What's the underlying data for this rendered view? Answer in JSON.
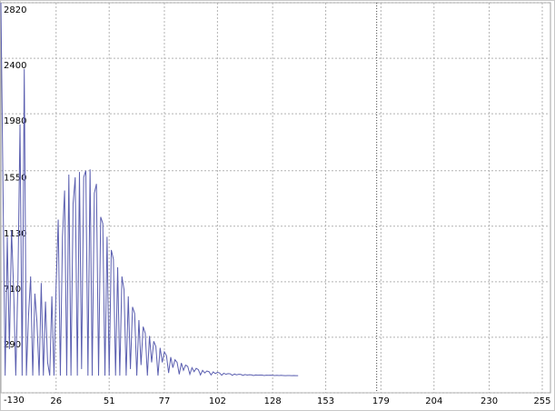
{
  "chart_data": {
    "type": "line",
    "x": [
      0,
      1,
      2,
      3,
      4,
      5,
      6,
      7,
      8,
      9,
      10,
      11,
      12,
      13,
      14,
      15,
      16,
      17,
      18,
      19,
      20,
      21,
      22,
      23,
      24,
      25,
      26,
      27,
      28,
      29,
      30,
      31,
      32,
      33,
      34,
      35,
      36,
      37,
      38,
      39,
      40,
      41,
      42,
      43,
      44,
      45,
      46,
      47,
      48,
      49,
      50,
      51,
      52,
      53,
      54,
      55,
      56,
      57,
      58,
      59,
      60,
      61,
      62,
      63,
      64,
      65,
      66,
      67,
      68,
      69,
      70,
      71,
      72,
      73,
      74,
      75,
      76,
      77,
      78,
      79,
      80,
      81,
      82,
      83,
      84,
      85,
      86,
      87,
      88,
      89,
      90,
      91,
      92,
      93,
      94,
      95,
      96,
      97,
      98,
      99,
      100,
      101,
      102,
      103,
      104,
      105,
      106,
      107,
      108,
      109,
      110,
      111,
      112,
      113,
      114,
      115,
      116,
      117,
      118,
      119,
      120,
      121,
      122,
      123,
      124,
      125,
      126,
      127,
      128,
      129,
      130,
      131,
      132,
      133,
      134,
      135,
      136,
      137,
      138,
      139,
      140
    ],
    "series": [
      {
        "color": "#5b5fb0",
        "values": [
          2820,
          1400,
          0,
          1050,
          200,
          1100,
          650,
          0,
          700,
          1900,
          0,
          2320,
          0,
          450,
          750,
          0,
          620,
          400,
          0,
          700,
          0,
          560,
          100,
          0,
          600,
          0,
          680,
          1180,
          0,
          1050,
          1400,
          0,
          1520,
          0,
          1300,
          1500,
          0,
          1540,
          50,
          1500,
          1550,
          0,
          1560,
          0,
          1380,
          1450,
          0,
          1200,
          1150,
          0,
          1050,
          0,
          950,
          880,
          0,
          820,
          0,
          750,
          650,
          0,
          600,
          50,
          520,
          470,
          0,
          420,
          80,
          370,
          320,
          0,
          300,
          100,
          260,
          220,
          0,
          210,
          100,
          180,
          150,
          20,
          140,
          60,
          120,
          100,
          10,
          95,
          40,
          80,
          70,
          10,
          60,
          30,
          55,
          45,
          5,
          40,
          20,
          35,
          30,
          5,
          28,
          15,
          25,
          20,
          3,
          18,
          10,
          15,
          14,
          2,
          12,
          6,
          10,
          9,
          2,
          8,
          4,
          7,
          6,
          1,
          5,
          3,
          4,
          4,
          1,
          3,
          2,
          3,
          2,
          1,
          2,
          1,
          2,
          1,
          0,
          1,
          1,
          0,
          1,
          0,
          0
        ]
      }
    ],
    "xlim": [
      0,
      258
    ],
    "ylim": [
      -130,
      2820
    ],
    "xticks": [
      26,
      51,
      77,
      102,
      128,
      153,
      179,
      204,
      230,
      255
    ],
    "yticks": [
      -130,
      290,
      710,
      1130,
      1550,
      1980,
      2400,
      2820
    ],
    "marker_x": 177,
    "grid": true
  }
}
